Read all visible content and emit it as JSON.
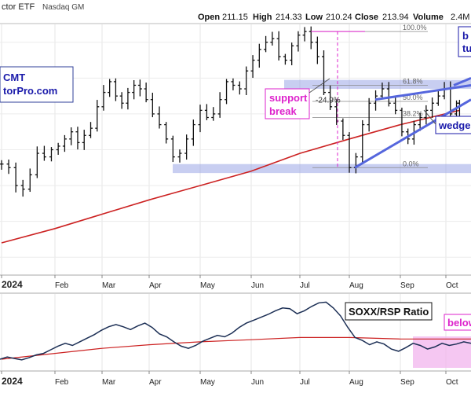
{
  "header": {
    "symbol_fragment": "ctor ETF",
    "exchange": "Nasdaq GM",
    "open_label": "Open",
    "open_value": "211.15",
    "high_label": "High",
    "high_value": "214.33",
    "low_label": "Low",
    "low_value": "210.24",
    "close_label": "Close",
    "close_value": "213.94",
    "volume_label": "Volume",
    "volume_value": "2.4M"
  },
  "watermark": {
    "line1": "CMT",
    "line2": "torPro.com"
  },
  "annotations": {
    "support_break_line1": "support",
    "support_break_line2": "break",
    "decline_pct": "-24.9%",
    "wedge": "wedge",
    "top_right_line1": "b",
    "top_right_line2": "tu",
    "ratio_below": "below"
  },
  "colors": {
    "price_bars": "#111111",
    "moving_average": "#cc2222",
    "support_zone": "#9aa6e6",
    "wedge_lines": "#5566dd",
    "annotation_magenta": "#dd22cc",
    "annotation_blue": "#1a1aaa",
    "fib_lines": "#888888",
    "ratio_line": "#1c2f55",
    "ratio_zone": "#f1b4ee"
  },
  "chart_data": [
    {
      "type": "line",
      "chart": "price",
      "style": "ohlc-bars",
      "x_axis": {
        "labels": [
          "2024",
          "Feb",
          "Mar",
          "Apr",
          "May",
          "Jun",
          "Jul",
          "Aug",
          "Sep",
          "Oct"
        ],
        "range_start": "2024-01-02",
        "range_end": "2024-10-10"
      },
      "y_axis_visible": false,
      "ylim": [
        130,
        270
      ],
      "grid": true,
      "series": [
        {
          "name": "price",
          "dates": [
            "2024-01-02",
            "2024-01-06",
            "2024-01-10",
            "2024-01-14",
            "2024-01-18",
            "2024-01-22",
            "2024-01-26",
            "2024-01-30",
            "2024-02-03",
            "2024-02-07",
            "2024-02-11",
            "2024-02-15",
            "2024-02-19",
            "2024-02-23",
            "2024-02-27",
            "2024-03-02",
            "2024-03-06",
            "2024-03-10",
            "2024-03-14",
            "2024-03-18",
            "2024-03-22",
            "2024-03-26",
            "2024-03-30",
            "2024-04-03",
            "2024-04-07",
            "2024-04-11",
            "2024-04-15",
            "2024-04-19",
            "2024-04-23",
            "2024-04-27",
            "2024-05-01",
            "2024-05-05",
            "2024-05-09",
            "2024-05-13",
            "2024-05-17",
            "2024-05-21",
            "2024-05-25",
            "2024-05-29",
            "2024-06-02",
            "2024-06-06",
            "2024-06-10",
            "2024-06-14",
            "2024-06-18",
            "2024-06-22",
            "2024-06-26",
            "2024-06-30",
            "2024-07-04",
            "2024-07-08",
            "2024-07-12",
            "2024-07-16",
            "2024-07-20",
            "2024-07-24",
            "2024-07-28",
            "2024-08-01",
            "2024-08-05",
            "2024-08-09",
            "2024-08-13",
            "2024-08-17",
            "2024-08-21",
            "2024-08-25",
            "2024-08-29",
            "2024-09-02",
            "2024-09-06",
            "2024-09-10",
            "2024-09-14",
            "2024-09-18",
            "2024-09-22",
            "2024-09-26",
            "2024-09-30",
            "2024-10-04",
            "2024-10-08",
            "2024-10-10"
          ],
          "close": [
            192,
            190,
            180,
            178,
            186,
            198,
            196,
            200,
            202,
            206,
            210,
            204,
            208,
            212,
            224,
            232,
            238,
            230,
            226,
            232,
            236,
            234,
            228,
            220,
            214,
            206,
            196,
            198,
            206,
            214,
            222,
            218,
            220,
            228,
            238,
            236,
            234,
            244,
            250,
            256,
            260,
            262,
            252,
            250,
            258,
            264,
            266,
            260,
            252,
            232,
            224,
            216,
            208,
            190,
            196,
            214,
            226,
            230,
            234,
            226,
            222,
            210,
            206,
            214,
            218,
            222,
            226,
            230,
            234,
            220,
            226,
            214
          ]
        },
        {
          "name": "moving average",
          "dates": [
            "2024-01-02",
            "2024-02-01",
            "2024-03-01",
            "2024-04-01",
            "2024-05-01",
            "2024-06-01",
            "2024-07-01",
            "2024-08-01",
            "2024-09-01",
            "2024-10-10"
          ],
          "values": [
            148,
            156,
            164,
            172,
            180,
            188,
            198,
            206,
            214,
            222
          ]
        }
      ],
      "levels": [
        {
          "label": "100.0%",
          "value": 266
        },
        {
          "label": "61.8%",
          "value": 236
        },
        {
          "label": "50.0%",
          "value": 227
        },
        {
          "label": "38.2%",
          "value": 218
        },
        {
          "label": "0.0%",
          "value": 190
        }
      ]
    },
    {
      "type": "line",
      "chart": "ratio",
      "title": "SOXX/RSP Ratio",
      "x_axis": {
        "labels": [
          "2024",
          "Feb",
          "Mar",
          "Apr",
          "May",
          "Jun",
          "Jul",
          "Aug",
          "Sep",
          "Oct"
        ]
      },
      "y_axis_visible": false,
      "grid": true,
      "series": [
        {
          "name": "SOXX/RSP Ratio",
          "values": [
            0.2,
            0.5,
            0.3,
            0.1,
            0.4,
            0.8,
            1.0,
            1.5,
            2.0,
            2.4,
            2.1,
            2.6,
            3.1,
            3.6,
            4.2,
            4.7,
            5.0,
            4.7,
            4.3,
            4.8,
            5.2,
            4.6,
            3.7,
            3.3,
            2.6,
            2.0,
            1.7,
            2.1,
            2.7,
            3.1,
            3.5,
            3.3,
            3.8,
            4.6,
            5.2,
            5.6,
            6.0,
            6.4,
            6.9,
            7.3,
            7.2,
            6.5,
            6.9,
            7.5,
            8.0,
            8.1,
            7.3,
            6.2,
            4.6,
            3.2,
            2.8,
            2.2,
            2.6,
            2.3,
            1.6,
            1.3,
            1.8,
            2.4,
            2.1,
            1.6,
            1.9,
            2.4,
            2.1,
            2.3,
            2.6,
            2.4
          ]
        },
        {
          "name": "moving average",
          "values": [
            0.2,
            1.0,
            1.7,
            2.2,
            2.6,
            2.9,
            3.2,
            3.2,
            3.0,
            3.0
          ]
        }
      ]
    }
  ]
}
